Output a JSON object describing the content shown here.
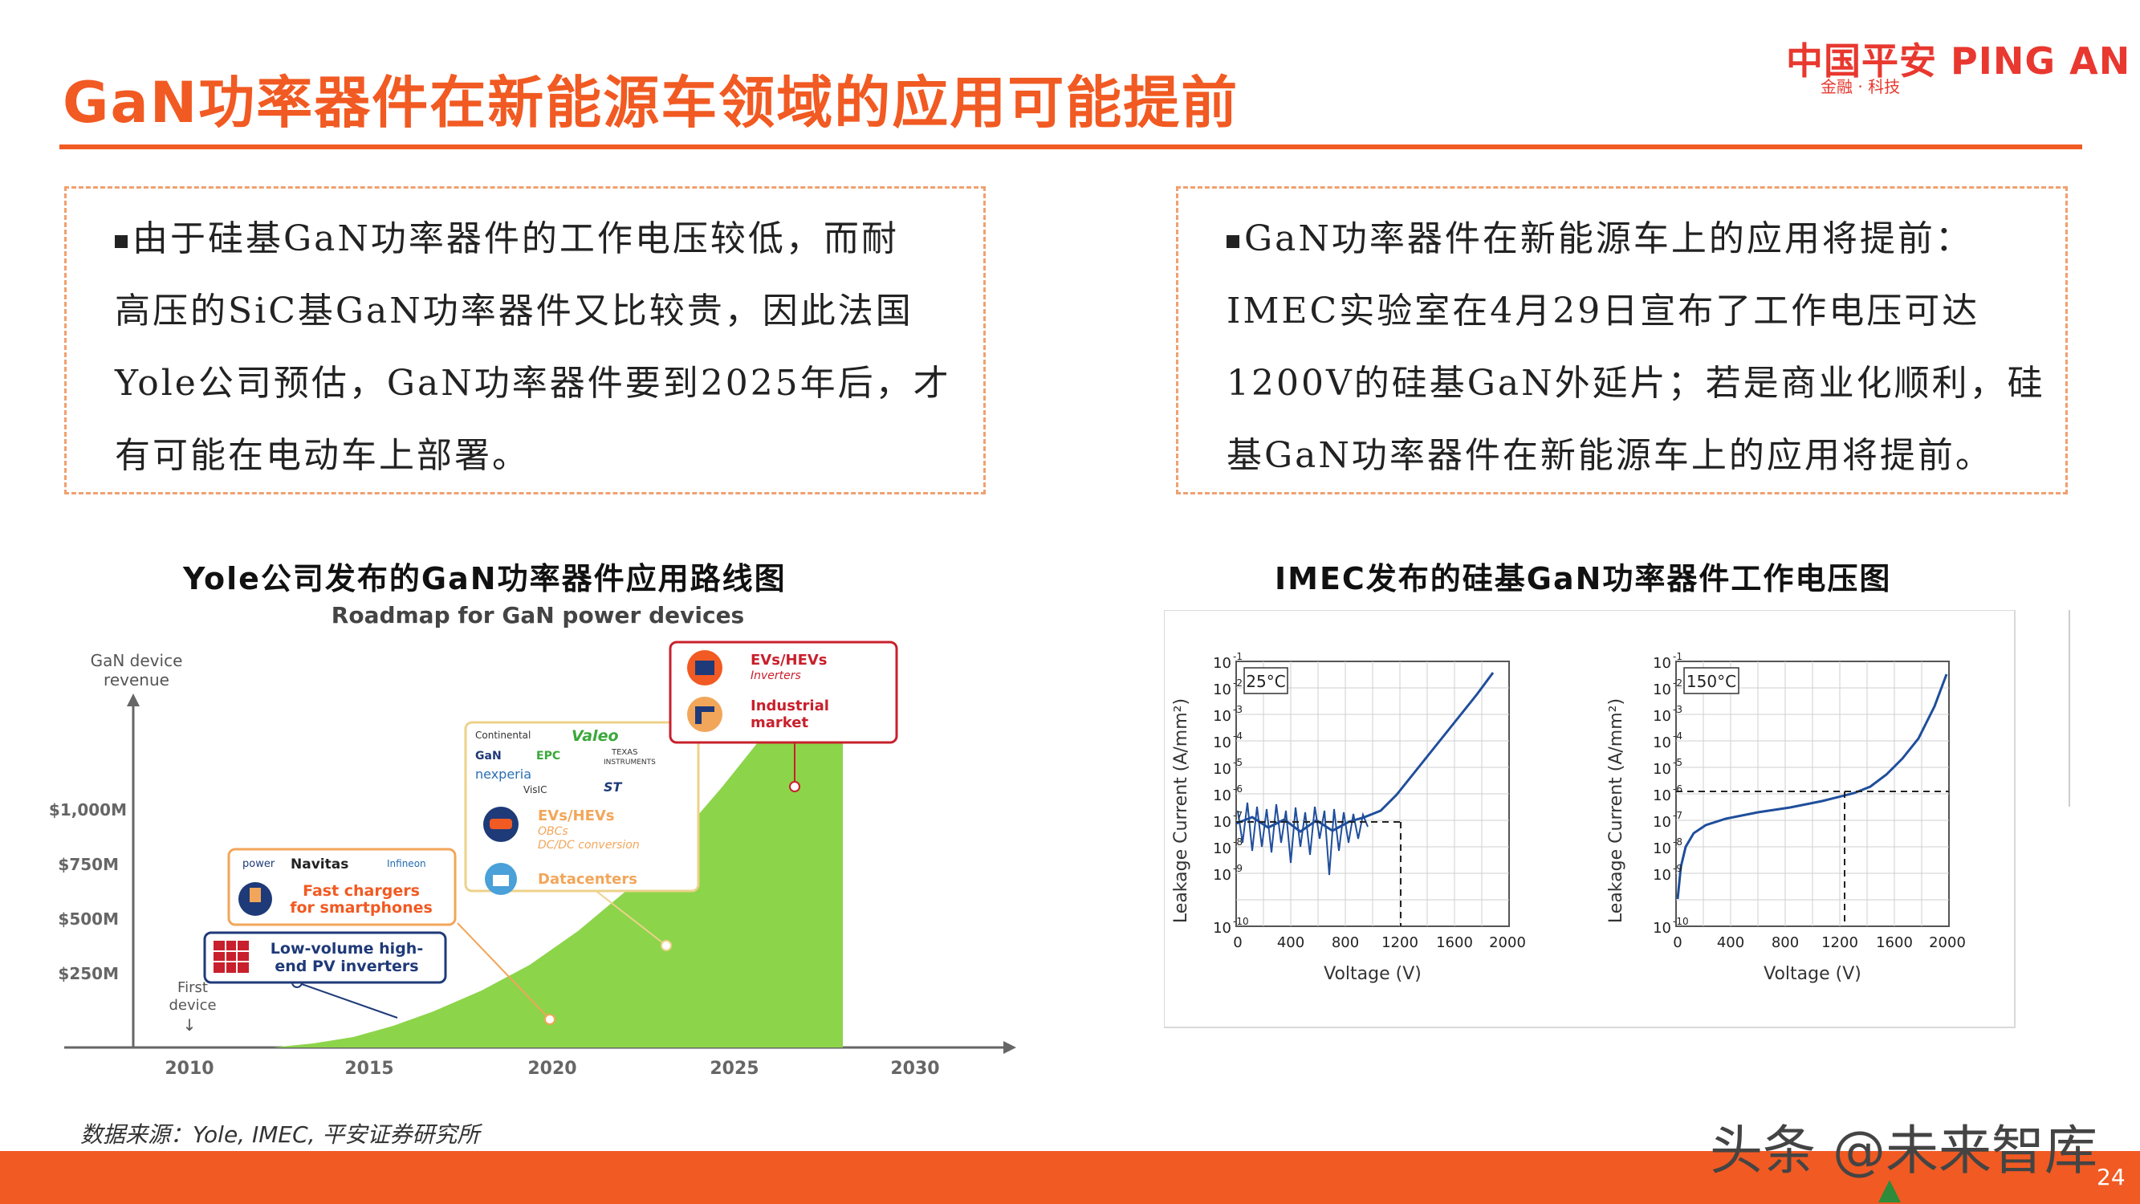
{
  "header": {
    "title": "GaN功率器件在新能源车领域的应用可能提前",
    "logo_main": "中国平安 PING AN",
    "logo_sub": "金融 · 科技"
  },
  "left_box": {
    "lines": [
      "由于硅基GaN功率器件的工作电压较低，而耐",
      "高压的SiC基GaN功率器件又比较贵，因此法国",
      "Yole公司预估，GaN功率器件要到2025年后，才",
      "有可能在电动车上部署。"
    ]
  },
  "right_box": {
    "lines": [
      "GaN功率器件在新能源车上的应用将提前：",
      "IMEC实验室在4月29日宣布了工作电压可达",
      "1200V的硅基GaN外延片；若是商业化顺利，硅",
      "基GaN功率器件在新能源车上的应用将提前。"
    ]
  },
  "left_figure": {
    "caption": "Yole公司发布的GaN功率器件应用路线图",
    "roadmap_title": "Roadmap for GaN power devices",
    "y_axis_label_1": "GaN device",
    "y_axis_label_2": "revenue",
    "y_ticks": [
      "$1,000M",
      "$750M",
      "$500M",
      "$250M"
    ],
    "x_ticks": [
      "2010",
      "2015",
      "2020",
      "2025",
      "2030"
    ],
    "first_device_1": "First",
    "first_device_2": "device",
    "callouts": {
      "pv": [
        "Low-volume high-",
        "end PV inverters"
      ],
      "chargers": [
        "Fast chargers",
        "for smartphones"
      ],
      "chargers_logos": [
        "power",
        "Navitas",
        "Infineon"
      ],
      "dc_logos": [
        "Continental",
        "Valeo",
        "GaN",
        "EPC",
        "TEXAS",
        "INSTRUMENTS",
        "nexperia",
        "VisIC",
        "ST"
      ],
      "ev1": [
        "EVs/HEVs",
        "OBCs",
        "DC/DC conversion"
      ],
      "datacenters": "Datacenters",
      "ev2": [
        "EVs/HEVs",
        "Inverters"
      ],
      "industrial": [
        "Industrial",
        "market"
      ]
    }
  },
  "right_figure": {
    "caption": "IMEC发布的硅基GaN功率器件工作电压图",
    "ylabel": "Leakage Current (A/mm²)",
    "xlabel": "Voltage (V)",
    "x_ticks": [
      "0",
      "400",
      "800",
      "1200",
      "1600",
      "2000"
    ],
    "y_tick_exponents": [
      "-1",
      "-2",
      "-3",
      "-4",
      "-5",
      "-6",
      "-7",
      "-8",
      "-9",
      "-10"
    ],
    "panel1_temp": "25°C",
    "panel2_temp": "150°C"
  },
  "footer": {
    "source": "数据来源：Yole, IMEC, 平安证券研究所",
    "page_number": "24",
    "watermark": "头条 @未来智库"
  },
  "colors": {
    "accent": "#f15a22",
    "brand_red": "#e8382f",
    "green_area": "#8cd44a",
    "curve_blue": "#1f4e9c",
    "callout_orange": "#f2a65a",
    "callout_red": "#c8202c",
    "callout_navy": "#1f3a78",
    "callout_yellow": "#ecd28a"
  }
}
